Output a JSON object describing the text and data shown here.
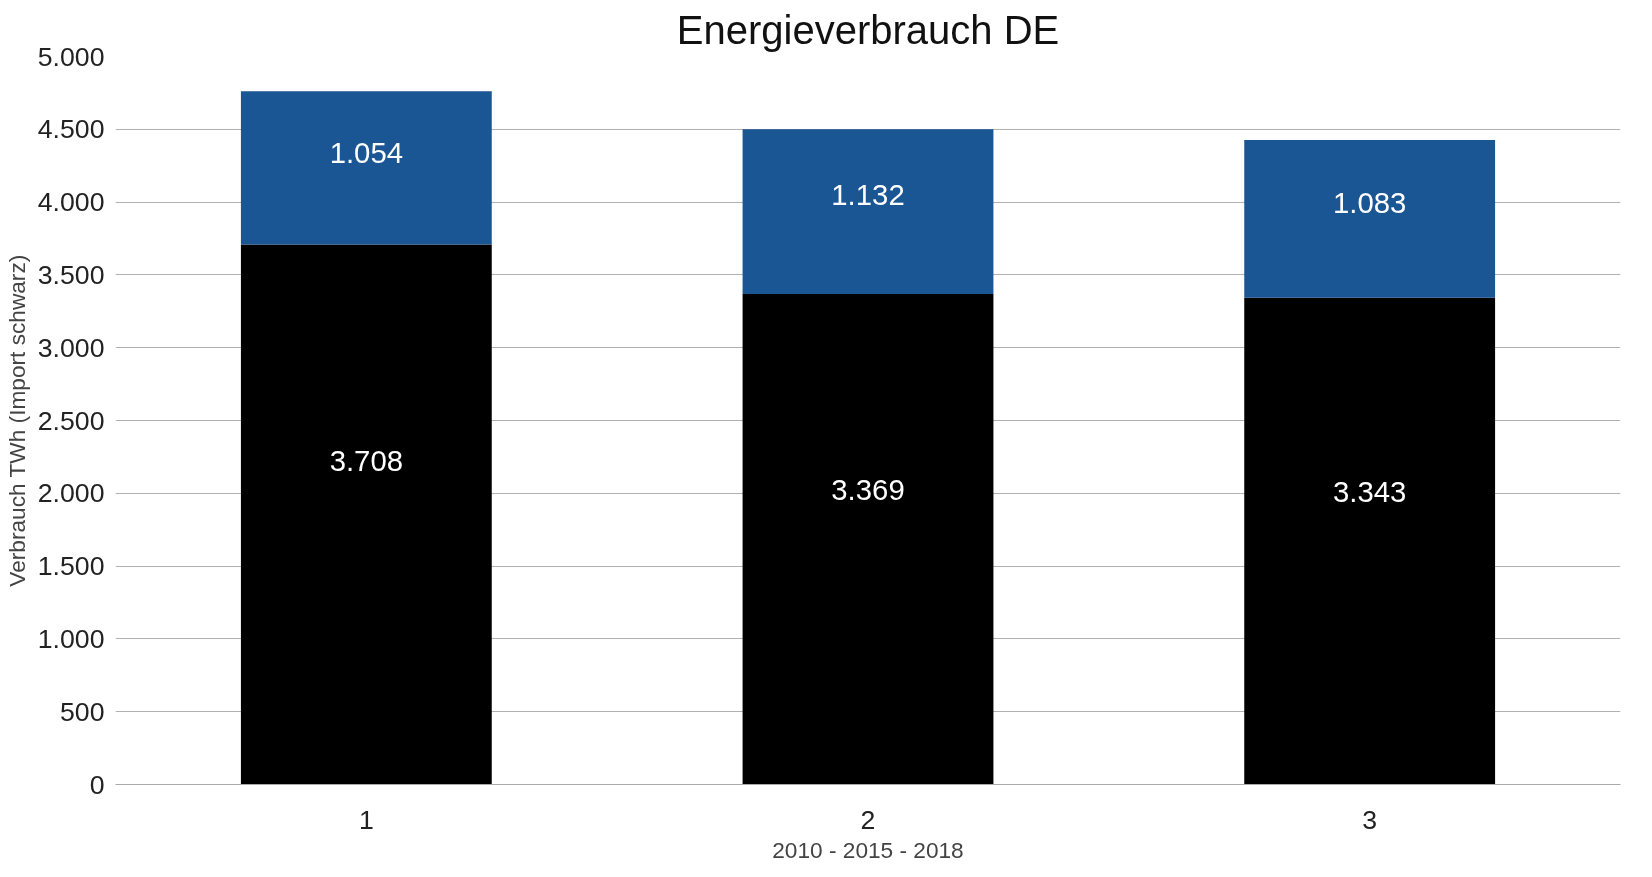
{
  "chart_data": {
    "type": "bar",
    "title": "Energieverbrauch DE",
    "xlabel": "2010 - 2015 - 2018",
    "ylabel": "Verbrauch TWh (Import schwarz)",
    "categories": [
      "1",
      "2",
      "3"
    ],
    "stacked": true,
    "series": [
      {
        "color": "#000000",
        "values": [
          3708,
          3369,
          3343
        ],
        "value_labels": [
          "3.708",
          "3.369",
          "3.343"
        ]
      },
      {
        "color": "#1a5594",
        "values": [
          1054,
          1132,
          1083
        ],
        "value_labels": [
          "1.054",
          "1.132",
          "1.083"
        ]
      }
    ],
    "ylim": [
      0,
      5000
    ],
    "yticks": [
      {
        "value": 0,
        "label": "0"
      },
      {
        "value": 500,
        "label": "500"
      },
      {
        "value": 1000,
        "label": "1.000"
      },
      {
        "value": 1500,
        "label": "1.500"
      },
      {
        "value": 2000,
        "label": "2.000"
      },
      {
        "value": 2500,
        "label": "2.500"
      },
      {
        "value": 3000,
        "label": "3.000"
      },
      {
        "value": 3500,
        "label": "3.500"
      },
      {
        "value": 4000,
        "label": "4.000"
      },
      {
        "value": 4500,
        "label": "4.500"
      },
      {
        "value": 5000,
        "label": "5.000"
      }
    ],
    "grid": "y"
  }
}
